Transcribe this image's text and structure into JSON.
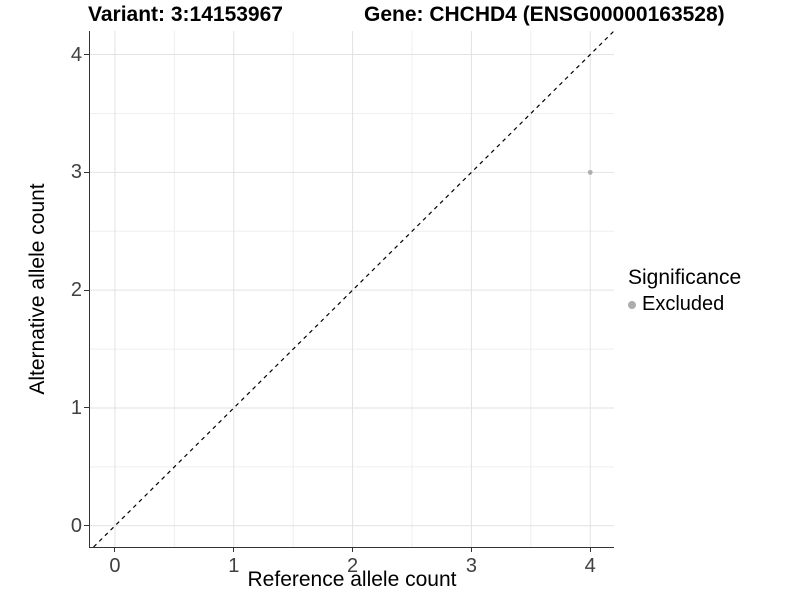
{
  "header": {
    "title_left": "Variant: 3:14153967",
    "title_right": "Gene: CHCHD4 (ENSG00000163528)"
  },
  "axes": {
    "x_label": "Reference allele count",
    "y_label": "Alternative allele count"
  },
  "legend": {
    "title": "Significance",
    "items": [
      {
        "label": "Excluded",
        "marker": "dot",
        "color": "#adadad"
      }
    ]
  },
  "chart_data": {
    "type": "scatter",
    "title_left": "Variant: 3:14153967",
    "title_right": "Gene: CHCHD4 (ENSG00000163528)",
    "xlabel": "Reference allele count",
    "ylabel": "Alternative allele count",
    "points": [
      {
        "x": 4,
        "y": 3,
        "series": "Excluded",
        "color": "#adadad",
        "radius": 2.4
      }
    ],
    "x_ticks": [
      0,
      1,
      2,
      3,
      4
    ],
    "y_ticks": [
      0,
      1,
      2,
      3,
      4
    ],
    "xlim": [
      -0.21,
      4.2
    ],
    "ylim": [
      -0.18,
      4.2
    ],
    "grid": {
      "major": true,
      "minor": true
    },
    "reference_line": {
      "slope": 1,
      "intercept": 0,
      "style": "dashed",
      "color": "#000000"
    },
    "legend_position": "right",
    "legend_title": "Significance",
    "legend_entries": [
      "Excluded"
    ],
    "colors": {
      "background": "#ffffff",
      "grid_major": "#e2e2e2",
      "grid_minor": "#efefef",
      "axis_line": "#333333",
      "tick_label": "#404040",
      "point": "#adadad",
      "reference_line": "#000000"
    }
  }
}
